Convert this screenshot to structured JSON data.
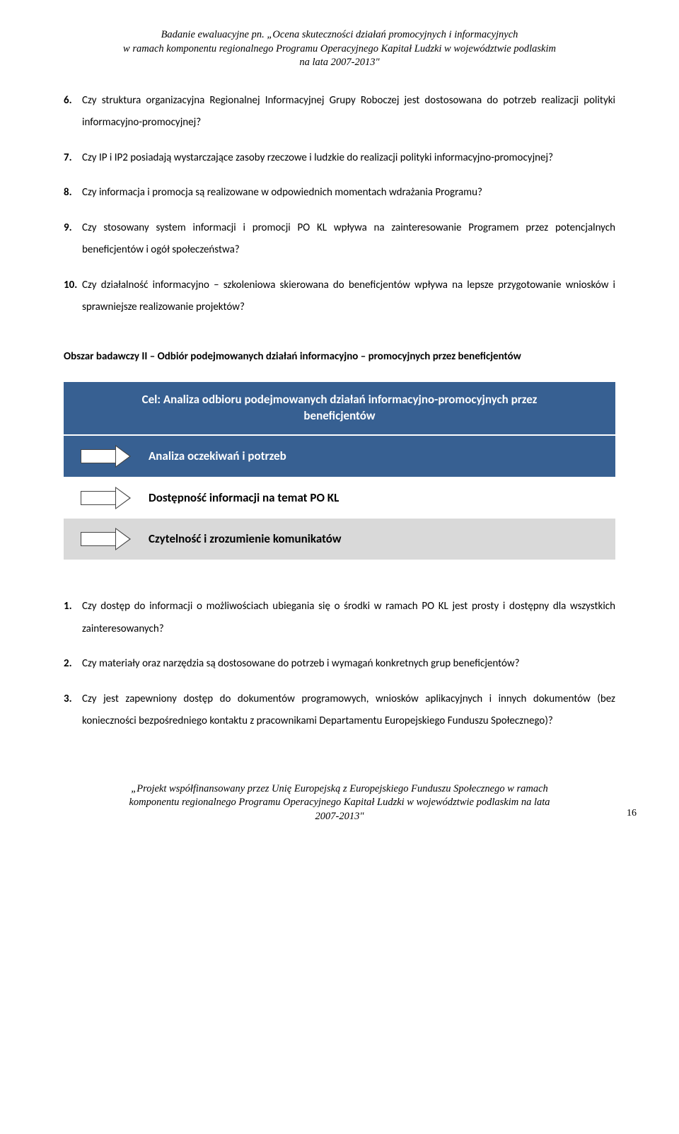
{
  "header": {
    "line1": "Badanie ewaluacyjne pn. „Ocena skuteczności działań promocyjnych i informacyjnych",
    "line2": "w ramach komponentu regionalnego Programu Operacyjnego Kapitał Ludzki w województwie podlaskim",
    "line3": "na lata 2007-2013\""
  },
  "list1": [
    {
      "n": "6.",
      "t": "Czy struktura organizacyjna Regionalnej Informacyjnej Grupy Roboczej jest dostosowana do potrzeb realizacji polityki informacyjno-promocyjnej?"
    },
    {
      "n": "7.",
      "t": "Czy IP i IP2 posiadają wystarczające zasoby rzeczowe i ludzkie do realizacji polityki informacyjno-promocyjnej?"
    },
    {
      "n": "8.",
      "t": "Czy informacja i promocja są realizowane w odpowiednich momentach wdrażania Programu?"
    },
    {
      "n": "9.",
      "t": "Czy stosowany system informacji i promocji PO KL wpływa na zainteresowanie Programem przez potencjalnych beneficjentów i ogół społeczeństwa?"
    },
    {
      "n": "10.",
      "t": "Czy działalność informacyjno – szkoleniowa skierowana do beneficjentów wpływa na lepsze przygotowanie wniosków i sprawniejsze realizowanie projektów?"
    }
  ],
  "section_heading": "Obszar badawczy II – Odbiór podejmowanych działań informacyjno – promocyjnych przez beneficjentów",
  "diagram": {
    "cel": "Cel: Analiza odbioru podejmowanych działań informacyjno-promocyjnych przez beneficjentów",
    "rows": [
      {
        "label": "Analiza oczekiwań i potrzeb",
        "bg": "#376092",
        "fg": "#ffffff"
      },
      {
        "label": "Dostępność informacji na temat PO KL",
        "bg": "#ffffff",
        "fg": "#000000"
      },
      {
        "label": "Czytelność i zrozumienie komunikatów",
        "bg": "#d9d9d9",
        "fg": "#000000"
      }
    ],
    "header_bg": "#376092",
    "header_fg": "#ffffff",
    "arrow_fill": "#ffffff",
    "arrow_border": "#444444"
  },
  "list2": [
    {
      "n": "1.",
      "t": "Czy dostęp do informacji o możliwościach ubiegania się o środki w ramach PO KL  jest prosty i dostępny dla wszystkich zainteresowanych?"
    },
    {
      "n": "2.",
      "t": "Czy materiały oraz narzędzia są dostosowane do potrzeb i wymagań konkretnych grup beneficjentów?"
    },
    {
      "n": "3.",
      "t": "Czy jest zapewniony dostęp do dokumentów programowych, wniosków aplikacyjnych i innych dokumentów (bez konieczności bezpośredniego kontaktu z pracownikami Departamentu Europejskiego Funduszu Społecznego)?"
    }
  ],
  "footer": {
    "line1": "„Projekt współfinansowany przez Unię Europejską z Europejskiego Funduszu Społecznego w ramach",
    "line2": "komponentu regionalnego Programu Operacyjnego Kapitał Ludzki w województwie podlaskim na lata",
    "line3": "2007-2013\"",
    "page": "16"
  }
}
